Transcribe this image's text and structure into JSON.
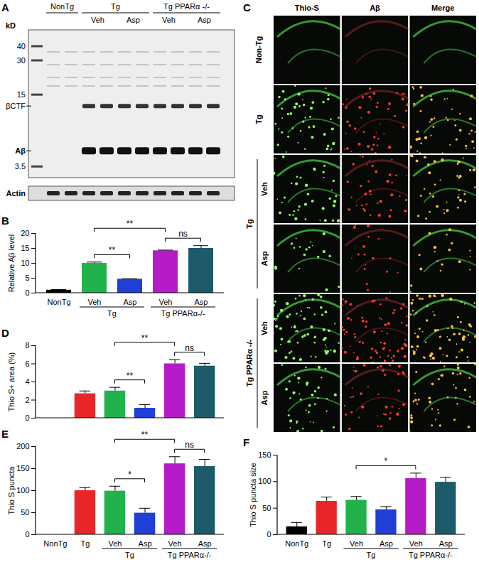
{
  "blot": {
    "panel": "A",
    "unit_label": "kD",
    "markers": [
      40,
      30,
      15,
      3.5
    ],
    "band_labels": [
      "βCTF",
      "Aβ"
    ],
    "loading_control": "Actin",
    "groups": [
      {
        "label": "NonTg",
        "subgroups": []
      },
      {
        "label": "Tg",
        "subgroups": [
          "Veh",
          "Asp"
        ]
      },
      {
        "label": "Tg PPARα -/-",
        "subgroups": [
          "Veh",
          "Asp"
        ]
      }
    ]
  },
  "micrographs": {
    "panel": "C",
    "columns": [
      "Thio-S",
      "Aβ",
      "Merge"
    ],
    "rows": [
      {
        "label": "Non-Tg"
      },
      {
        "label": "Tg"
      },
      {
        "group": "Tg",
        "label": "Veh"
      },
      {
        "group": "Tg",
        "label": "Asp"
      },
      {
        "group": "Tg PPARα -/-",
        "label": "Veh"
      },
      {
        "group": "Tg PPARα -/-",
        "label": "Asp"
      }
    ]
  },
  "chart_data": [
    {
      "panel": "B",
      "type": "bar",
      "categories": [
        "NonTg",
        "Veh",
        "Asp",
        "Veh",
        "Asp"
      ],
      "values": [
        1,
        10,
        4.7,
        14.2,
        15
      ],
      "errors": [
        0.2,
        0.4,
        0.1,
        0.2,
        0.9
      ],
      "colors": [
        "#000000",
        "#22b24c",
        "#1f3fd6",
        "#b51cc8",
        "#1e5b6a"
      ],
      "ylabel": "Relative Aβ level",
      "ylim": [
        0,
        20
      ],
      "yticks": [
        0,
        5,
        10,
        15,
        20
      ],
      "groups": [
        {
          "label": "Tg",
          "categories": [
            1,
            2
          ]
        },
        {
          "label": "Tg PPARα-/-",
          "categories": [
            3,
            4
          ]
        }
      ],
      "comparisons": [
        {
          "categories": [
            1,
            3
          ],
          "label": "**"
        },
        {
          "categories": [
            1,
            2
          ],
          "label": "**"
        },
        {
          "categories": [
            3,
            4
          ],
          "label": "ns"
        }
      ]
    },
    {
      "panel": "D",
      "type": "bar",
      "categories": [
        null,
        null,
        null,
        null,
        null,
        null
      ],
      "values": [
        0,
        2.7,
        3.0,
        1.1,
        6.0,
        5.75
      ],
      "errors": [
        0,
        0.3,
        0.4,
        0.4,
        0.45,
        0.3
      ],
      "colors": [
        "#000000",
        "#e8262a",
        "#22b24c",
        "#1f3fd6",
        "#b51cc8",
        "#1e5b6a"
      ],
      "ylabel": "Thio S+ area (%)",
      "ylim": [
        0,
        8
      ],
      "yticks": [
        0,
        2,
        4,
        6,
        8
      ],
      "tick_labels": "y",
      "comparisons": [
        {
          "categories": [
            2,
            4
          ],
          "label": "**"
        },
        {
          "categories": [
            2,
            3
          ],
          "label": "**"
        },
        {
          "categories": [
            4,
            5
          ],
          "label": "ns"
        }
      ]
    },
    {
      "panel": "E",
      "type": "bar",
      "categories": [
        "NonTg",
        "Tg",
        "Veh",
        "Asp",
        "Veh",
        "Asp"
      ],
      "values": [
        0,
        100,
        99,
        49,
        161,
        155
      ],
      "errors": [
        0,
        7,
        11,
        11,
        16,
        16
      ],
      "colors": [
        "#000000",
        "#e8262a",
        "#22b24c",
        "#1f3fd6",
        "#b51cc8",
        "#1e5b6a"
      ],
      "ylabel": "Thio S puncta",
      "ylim": [
        0,
        200
      ],
      "yticks": [
        0,
        50,
        100,
        150,
        200
      ],
      "groups": [
        {
          "label": "Tg",
          "categories": [
            2,
            3
          ]
        },
        {
          "label": "Tg PPARα-/-",
          "categories": [
            4,
            5
          ]
        }
      ],
      "comparisons": [
        {
          "categories": [
            2,
            4
          ],
          "label": "**"
        },
        {
          "categories": [
            2,
            3
          ],
          "label": "*"
        },
        {
          "categories": [
            4,
            5
          ],
          "label": "ns"
        }
      ]
    },
    {
      "panel": "F",
      "type": "bar",
      "categories": [
        "NonTg",
        "Tg",
        "Veh",
        "Asp",
        "Veh",
        "Asp"
      ],
      "values": [
        15,
        63,
        65,
        47,
        106,
        99
      ],
      "errors": [
        8,
        8,
        7,
        6,
        10,
        9
      ],
      "colors": [
        "#000000",
        "#e8262a",
        "#22b24c",
        "#1f3fd6",
        "#b51cc8",
        "#1e5b6a"
      ],
      "ylabel": "Thio S puncta size",
      "ylim": [
        0,
        150
      ],
      "yticks": [
        0,
        50,
        100,
        150
      ],
      "groups": [
        {
          "label": "Tg",
          "categories": [
            2,
            3
          ]
        },
        {
          "label": "Tg PPARα-/-",
          "categories": [
            4,
            5
          ]
        }
      ],
      "comparisons": [
        {
          "categories": [
            2,
            4
          ],
          "label": "*"
        }
      ]
    }
  ]
}
